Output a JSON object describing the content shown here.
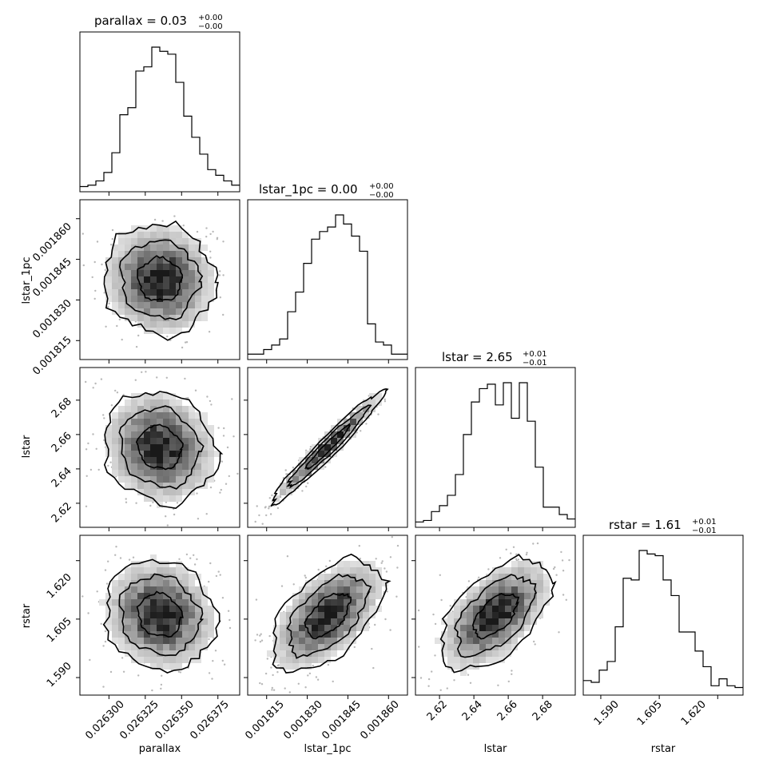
{
  "chart_data": {
    "type": "corner",
    "parameters": [
      {
        "key": "parallax",
        "xlabel": "parallax",
        "title_main": "parallax = 0.03",
        "title_sup": "+0.00",
        "title_sub": "−0.00",
        "range": [
          0.02628,
          0.02639
        ],
        "ticks": [
          "0.026300",
          "0.026325",
          "0.026350",
          "0.026375"
        ],
        "tick_values": [
          0.0263,
          0.026325,
          0.02635,
          0.026375
        ],
        "hist": [
          2,
          3,
          6,
          12,
          26,
          53,
          58,
          84,
          87,
          101,
          98,
          96,
          76,
          52,
          37,
          25,
          14,
          10,
          6,
          3
        ]
      },
      {
        "key": "lstar_1pc",
        "xlabel": "lstar_1pc",
        "ylabel": "lstar_1pc",
        "title_main": "lstar_1pc = 0.00",
        "title_sup": "+0.00",
        "title_sub": "−0.00",
        "range": [
          0.001808,
          0.001867
        ],
        "ticks": [
          "0.001815",
          "0.001830",
          "0.001845",
          "0.001860"
        ],
        "tick_values": [
          0.001815,
          0.00183,
          0.001845,
          0.00186
        ],
        "hist": [
          2,
          2,
          5,
          8,
          12,
          30,
          43,
          62,
          78,
          83,
          86,
          94,
          88,
          80,
          70,
          22,
          10,
          8,
          2,
          2
        ]
      },
      {
        "key": "lstar",
        "xlabel": "lstar",
        "ylabel": "lstar",
        "title_main": "lstar = 2.65",
        "title_sup": "+0.01",
        "title_sub": "−0.01",
        "range": [
          2.606,
          2.699
        ],
        "ticks": [
          "2.62",
          "2.64",
          "2.66",
          "2.68"
        ],
        "tick_values": [
          2.62,
          2.64,
          2.66,
          2.68
        ],
        "hist": [
          2,
          3,
          9,
          13,
          20,
          34,
          61,
          83,
          92,
          95,
          81,
          96,
          72,
          96,
          70,
          39,
          12,
          12,
          7,
          4
        ]
      },
      {
        "key": "rstar",
        "xlabel": "rstar",
        "ylabel": "rstar",
        "title_main": "rstar = 1.61",
        "title_sup": "+0.01",
        "title_sub": "−0.01",
        "range": [
          1.5855,
          1.6265
        ],
        "ticks": [
          "1.590",
          "1.605",
          "1.620"
        ],
        "tick_values": [
          1.59,
          1.605,
          1.62
        ],
        "hist": [
          7,
          6,
          13,
          18,
          38,
          66,
          65,
          82,
          80,
          79,
          65,
          56,
          35,
          35,
          24,
          15,
          4,
          8,
          4,
          3
        ]
      }
    ]
  }
}
